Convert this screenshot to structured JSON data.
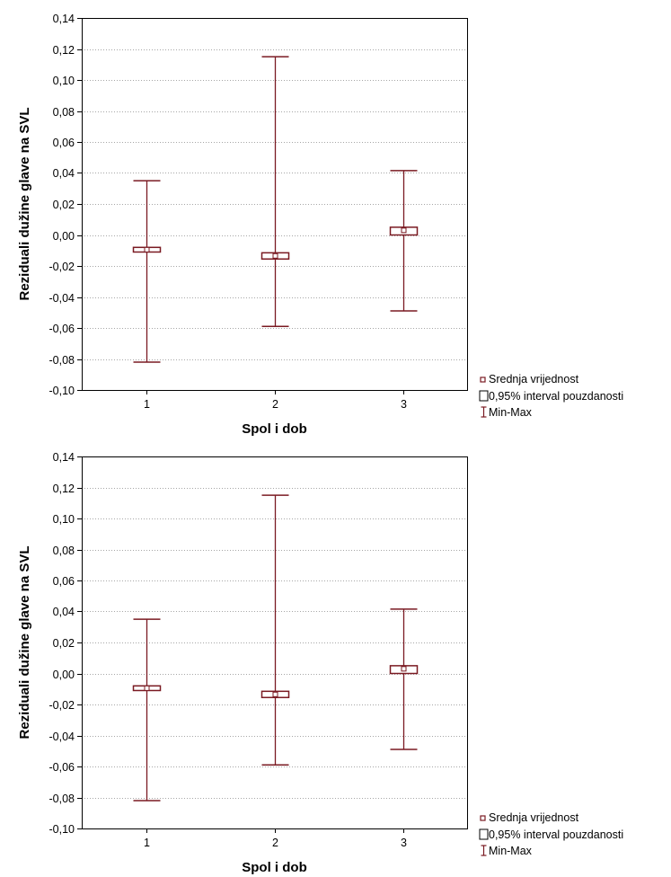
{
  "colors": {
    "series": "#7a1a22",
    "grid": "#a6a6a6",
    "axis": "#000000",
    "background": "#ffffff"
  },
  "legend": {
    "mean": "Srednja vrijednost",
    "ci": "0,95% interval pouzdanosti",
    "minmax": "Min-Max",
    "placement": "right-bottom"
  },
  "chart_data": [
    {
      "type": "box",
      "xlabel": "Spol i dob",
      "ylabel": "Reziduali dužine glave na SVL",
      "ylim": [
        -0.1,
        0.14
      ],
      "ytick_step": 0.02,
      "ytick_labels": [
        "-0,10",
        "-0,08",
        "-0,06",
        "-0,04",
        "-0,02",
        "0,00",
        "0,02",
        "0,04",
        "0,06",
        "0,08",
        "0,10",
        "0,12",
        "0,14"
      ],
      "grid": true,
      "categories": [
        "1",
        "2",
        "3"
      ],
      "groups": [
        {
          "category": "1",
          "min": -0.082,
          "ci_low": -0.011,
          "mean": -0.0095,
          "ci_high": -0.008,
          "max": 0.035
        },
        {
          "category": "2",
          "min": -0.059,
          "ci_low": -0.0155,
          "mean": -0.0135,
          "ci_high": -0.0115,
          "max": 0.115
        },
        {
          "category": "3",
          "min": -0.049,
          "ci_low": 0.0,
          "mean": 0.003,
          "ci_high": 0.005,
          "max": 0.0415
        }
      ]
    },
    {
      "type": "box",
      "xlabel": "Spol i dob",
      "ylabel": "Reziduali dužine glave na SVL",
      "ylim": [
        -0.1,
        0.14
      ],
      "ytick_step": 0.02,
      "ytick_labels": [
        "-0,10",
        "-0,08",
        "-0,06",
        "-0,04",
        "-0,02",
        "0,00",
        "0,02",
        "0,04",
        "0,06",
        "0,08",
        "0,10",
        "0,12",
        "0,14"
      ],
      "grid": true,
      "categories": [
        "1",
        "2",
        "3"
      ],
      "groups": [
        {
          "category": "1",
          "min": -0.082,
          "ci_low": -0.011,
          "mean": -0.0095,
          "ci_high": -0.008,
          "max": 0.035
        },
        {
          "category": "2",
          "min": -0.059,
          "ci_low": -0.0155,
          "mean": -0.0135,
          "ci_high": -0.0115,
          "max": 0.115
        },
        {
          "category": "3",
          "min": -0.049,
          "ci_low": 0.0,
          "mean": 0.003,
          "ci_high": 0.005,
          "max": 0.0415
        }
      ]
    }
  ]
}
